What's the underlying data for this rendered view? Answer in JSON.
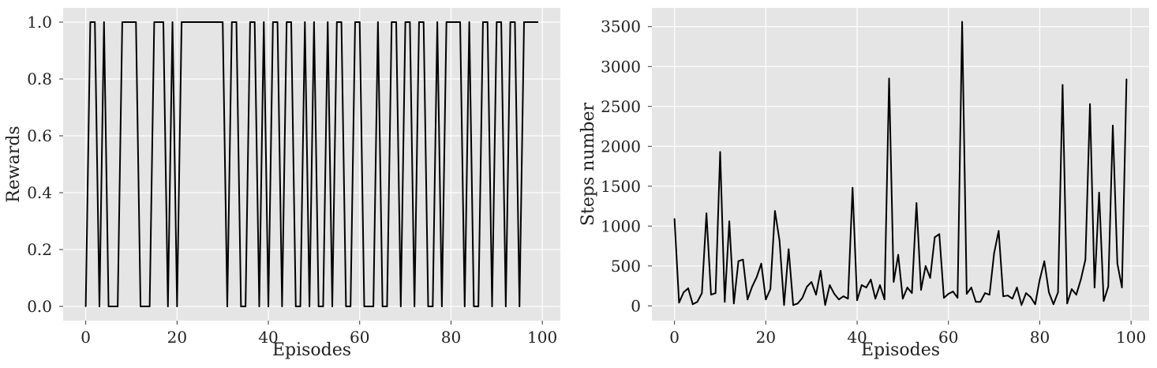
{
  "colors": {
    "plot_background": "#e5e5e5",
    "grid": "#ffffff",
    "line": "#000000"
  },
  "chart_data": [
    {
      "type": "line",
      "xlabel": "Episodes",
      "ylabel": "Rewards",
      "xlim": [
        -4.95,
        103.95
      ],
      "ylim": [
        -0.05,
        1.05
      ],
      "xticks": [
        0,
        20,
        40,
        60,
        80,
        100
      ],
      "xtick_labels": [
        "0",
        "20",
        "40",
        "60",
        "80",
        "100"
      ],
      "yticks": [
        0,
        0.2,
        0.4,
        0.6,
        0.8,
        1.0
      ],
      "ytick_labels": [
        "0.0",
        "0.2",
        "0.4",
        "0.6",
        "0.8",
        "1.0"
      ],
      "grid": true,
      "series": [
        {
          "color": "#000000",
          "values": [
            0,
            1,
            1,
            0,
            1,
            0,
            0,
            0,
            1,
            1,
            1,
            1,
            0,
            0,
            0,
            1,
            1,
            1,
            0,
            1,
            0,
            1,
            1,
            1,
            1,
            1,
            1,
            1,
            1,
            1,
            1,
            0,
            1,
            1,
            0,
            0,
            1,
            1,
            0,
            1,
            0,
            1,
            1,
            0,
            1,
            1,
            0,
            0,
            1,
            0,
            1,
            0,
            0,
            1,
            0,
            1,
            1,
            0,
            0,
            1,
            1,
            0,
            0,
            0,
            1,
            0,
            0,
            1,
            1,
            0,
            1,
            1,
            0,
            1,
            1,
            0,
            0,
            1,
            0,
            1,
            1,
            1,
            1,
            0,
            1,
            0,
            0,
            1,
            1,
            0,
            1,
            1,
            0,
            1,
            1,
            0,
            1,
            1,
            1,
            1
          ]
        }
      ]
    },
    {
      "type": "line",
      "xlabel": "Episodes",
      "ylabel": "Steps number",
      "xlim": [
        -4.95,
        103.95
      ],
      "ylim": [
        -185,
        3735
      ],
      "xticks": [
        0,
        20,
        40,
        60,
        80,
        100
      ],
      "xtick_labels": [
        "0",
        "20",
        "40",
        "60",
        "80",
        "100"
      ],
      "yticks": [
        0,
        500,
        1000,
        1500,
        2000,
        2500,
        3000,
        3500
      ],
      "ytick_labels": [
        "0",
        "500",
        "1000",
        "1500",
        "2000",
        "2500",
        "3000",
        "3500"
      ],
      "grid": true,
      "series": [
        {
          "color": "#000000",
          "values": [
            1090,
            40,
            170,
            220,
            20,
            50,
            160,
            1160,
            140,
            160,
            1930,
            50,
            1060,
            30,
            560,
            580,
            80,
            240,
            360,
            530,
            80,
            210,
            1190,
            820,
            10,
            710,
            10,
            30,
            100,
            240,
            300,
            140,
            440,
            10,
            260,
            150,
            80,
            120,
            90,
            1480,
            70,
            260,
            230,
            330,
            90,
            260,
            80,
            2850,
            300,
            640,
            90,
            230,
            160,
            1290,
            200,
            500,
            350,
            860,
            900,
            100,
            150,
            180,
            100,
            3560,
            150,
            230,
            50,
            50,
            160,
            140,
            660,
            940,
            120,
            130,
            90,
            230,
            10,
            160,
            110,
            20,
            330,
            560,
            170,
            20,
            170,
            2770,
            30,
            210,
            140,
            330,
            580,
            2530,
            230,
            1420,
            60,
            240,
            2260,
            530,
            230,
            2840
          ]
        }
      ]
    }
  ]
}
